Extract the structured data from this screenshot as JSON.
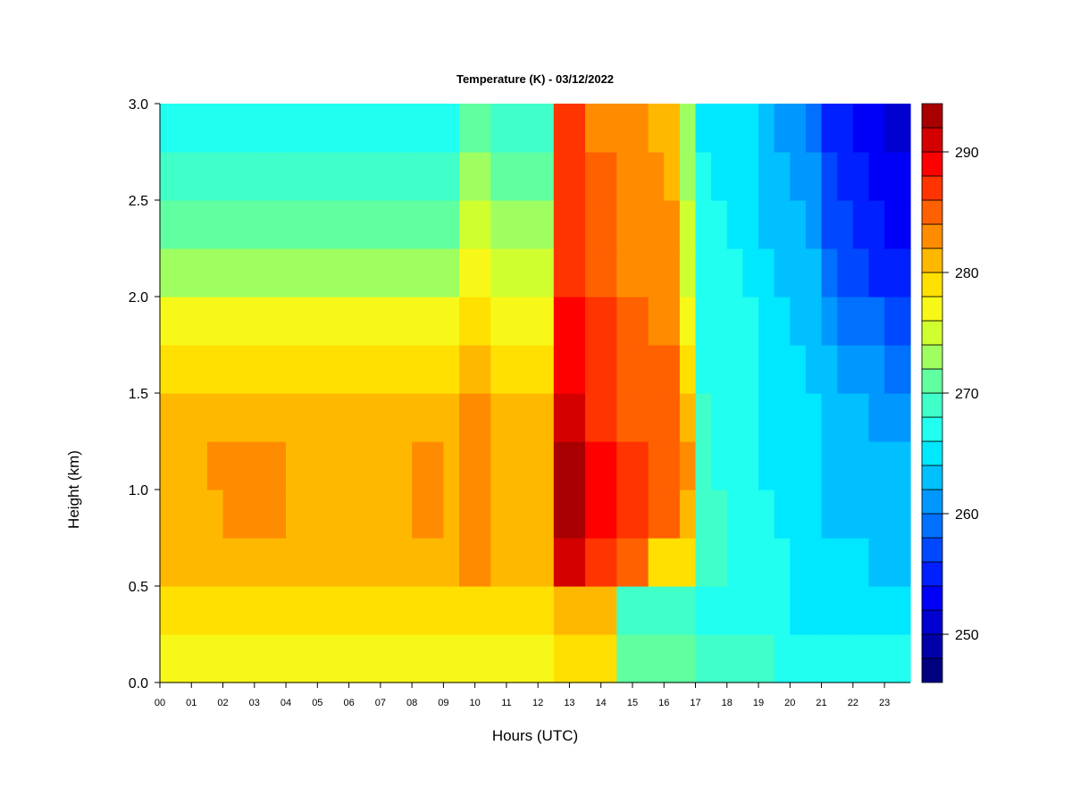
{
  "chart_data": {
    "type": "heatmap",
    "title": "Temperature (K) - 03/12/2022",
    "xlabel": "Hours (UTC)",
    "ylabel": "Height (km)",
    "xlim": [
      0,
      23.82
    ],
    "ylim": [
      0,
      3.0
    ],
    "x_tick_labels": [
      "00",
      "01",
      "02",
      "03",
      "04",
      "05",
      "06",
      "07",
      "08",
      "09",
      "10",
      "11",
      "12",
      "13",
      "14",
      "15",
      "16",
      "17",
      "18",
      "19",
      "20",
      "21",
      "22",
      "23"
    ],
    "y_ticks": [
      0.0,
      0.5,
      1.0,
      1.5,
      2.0,
      2.5,
      3.0
    ],
    "y_tick_labels": [
      "0.0",
      "0.5",
      "1.0",
      "1.5",
      "2.0",
      "2.5",
      "3.0"
    ],
    "x_step_hours": 0.5,
    "y_step_km": 0.25,
    "colorbar": {
      "min": 246,
      "max": 294,
      "step": 2,
      "ticks": [
        250,
        260,
        270,
        280,
        290
      ],
      "tick_labels": [
        "250",
        "260",
        "270",
        "280",
        "290"
      ],
      "colors": [
        "#000080",
        "#0000a8",
        "#0000d0",
        "#0000f8",
        "#0020ff",
        "#0048ff",
        "#0070ff",
        "#0098ff",
        "#00c0ff",
        "#00e8ff",
        "#20fff0",
        "#40ffc8",
        "#60ffa0",
        "#a0ff60",
        "#d0ff30",
        "#f8f818",
        "#ffe000",
        "#ffb800",
        "#ff8c00",
        "#ff6000",
        "#ff3400",
        "#ff0000",
        "#d40000",
        "#a80000",
        "#780000"
      ]
    },
    "rows_bottom_to_top": [
      [
        277,
        277,
        277,
        277,
        277,
        277,
        277,
        277,
        277,
        277,
        277,
        277,
        277,
        277,
        277,
        277,
        277,
        277,
        277,
        277,
        277,
        277,
        277,
        277,
        277,
        279,
        279,
        279,
        279,
        271,
        270,
        270,
        270,
        270,
        269,
        269,
        268,
        268,
        268,
        267,
        267,
        267,
        267,
        267,
        266,
        266,
        266,
        266
      ],
      [
        278,
        278,
        278,
        278,
        278,
        278,
        278,
        278,
        278,
        278,
        278,
        278,
        278,
        278,
        278,
        278,
        278,
        278,
        278,
        279,
        279,
        278,
        278,
        278,
        278,
        280,
        280,
        281,
        280,
        268,
        268,
        268,
        268,
        268,
        267,
        267,
        267,
        266,
        266,
        266,
        265,
        265,
        265,
        265,
        264,
        264,
        264,
        264
      ],
      [
        280,
        280,
        280,
        280,
        281,
        281,
        281,
        281,
        281,
        280,
        280,
        280,
        280,
        280,
        280,
        280,
        281,
        281,
        281,
        282,
        282,
        280,
        280,
        280,
        280,
        291,
        291,
        287,
        286,
        284,
        284,
        278,
        278,
        278,
        268,
        268,
        267,
        267,
        266,
        266,
        265,
        265,
        264,
        264,
        264,
        263,
        263,
        263
      ],
      [
        281,
        281,
        281,
        281,
        282,
        282,
        282,
        282,
        281,
        281,
        281,
        281,
        281,
        281,
        281,
        281,
        282,
        282,
        281,
        283,
        283,
        281,
        281,
        281,
        281,
        292,
        292,
        288,
        288,
        286,
        286,
        285,
        284,
        281,
        268,
        268,
        267,
        267,
        266,
        265,
        265,
        265,
        263,
        263,
        263,
        262,
        262,
        262
      ],
      [
        281,
        281,
        281,
        282,
        282,
        282,
        282,
        282,
        281,
        281,
        281,
        281,
        281,
        281,
        281,
        281,
        282,
        282,
        281,
        283,
        283,
        281,
        281,
        281,
        281,
        293,
        292,
        288,
        288,
        286,
        286,
        285,
        285,
        282,
        268,
        267,
        267,
        267,
        265,
        265,
        265,
        264,
        263,
        263,
        262,
        262,
        262,
        262
      ],
      [
        280,
        280,
        280,
        280,
        280,
        280,
        280,
        280,
        280,
        280,
        280,
        280,
        280,
        280,
        280,
        280,
        280,
        280,
        280,
        282,
        282,
        280,
        280,
        280,
        280,
        291,
        291,
        287,
        287,
        285,
        285,
        285,
        284,
        281,
        268,
        267,
        267,
        266,
        265,
        265,
        264,
        264,
        263,
        262,
        262,
        261,
        261,
        261
      ],
      [
        278,
        278,
        278,
        278,
        278,
        278,
        278,
        278,
        278,
        278,
        278,
        278,
        278,
        278,
        278,
        278,
        278,
        278,
        278,
        280,
        280,
        278,
        278,
        278,
        278,
        289,
        289,
        287,
        287,
        285,
        285,
        284,
        284,
        278,
        267,
        267,
        266,
        266,
        265,
        264,
        264,
        263,
        262,
        261,
        260,
        260,
        259,
        259
      ],
      [
        276,
        276,
        276,
        276,
        276,
        276,
        276,
        276,
        276,
        276,
        276,
        276,
        276,
        276,
        276,
        276,
        276,
        276,
        276,
        278,
        278,
        276,
        276,
        276,
        276,
        288,
        288,
        286,
        286,
        284,
        284,
        283,
        283,
        276,
        267,
        266,
        266,
        266,
        264,
        264,
        263,
        263,
        260,
        259,
        258,
        258,
        257,
        257
      ],
      [
        273,
        273,
        273,
        273,
        273,
        273,
        273,
        273,
        273,
        273,
        273,
        273,
        273,
        273,
        273,
        273,
        273,
        273,
        273,
        276,
        276,
        274,
        274,
        274,
        274,
        287,
        287,
        285,
        285,
        283,
        283,
        283,
        282,
        275,
        266,
        266,
        266,
        265,
        264,
        263,
        263,
        262,
        258,
        257,
        256,
        255,
        255,
        255
      ],
      [
        271,
        271,
        271,
        271,
        271,
        271,
        271,
        271,
        271,
        271,
        271,
        271,
        271,
        271,
        271,
        271,
        271,
        271,
        271,
        274,
        274,
        272,
        272,
        272,
        272,
        287,
        287,
        284,
        284,
        283,
        283,
        282,
        282,
        274,
        266,
        266,
        265,
        265,
        263,
        263,
        262,
        261,
        257,
        256,
        255,
        254,
        253,
        253
      ],
      [
        269,
        269,
        269,
        269,
        269,
        269,
        269,
        269,
        269,
        269,
        269,
        269,
        269,
        269,
        269,
        269,
        269,
        269,
        269,
        273,
        273,
        270,
        270,
        270,
        270,
        286,
        286,
        284,
        284,
        282,
        282,
        282,
        281,
        273,
        266,
        265,
        265,
        265,
        262,
        262,
        261,
        260,
        256,
        255,
        254,
        253,
        252,
        252
      ],
      [
        267,
        267,
        267,
        267,
        267,
        267,
        267,
        267,
        267,
        267,
        267,
        267,
        267,
        267,
        267,
        267,
        267,
        267,
        267,
        271,
        271,
        268,
        268,
        268,
        268,
        286,
        286,
        283,
        283,
        282,
        282,
        281,
        281,
        272,
        265,
        265,
        264,
        264,
        262,
        261,
        260,
        259,
        255,
        254,
        253,
        252,
        251,
        251
      ]
    ]
  }
}
